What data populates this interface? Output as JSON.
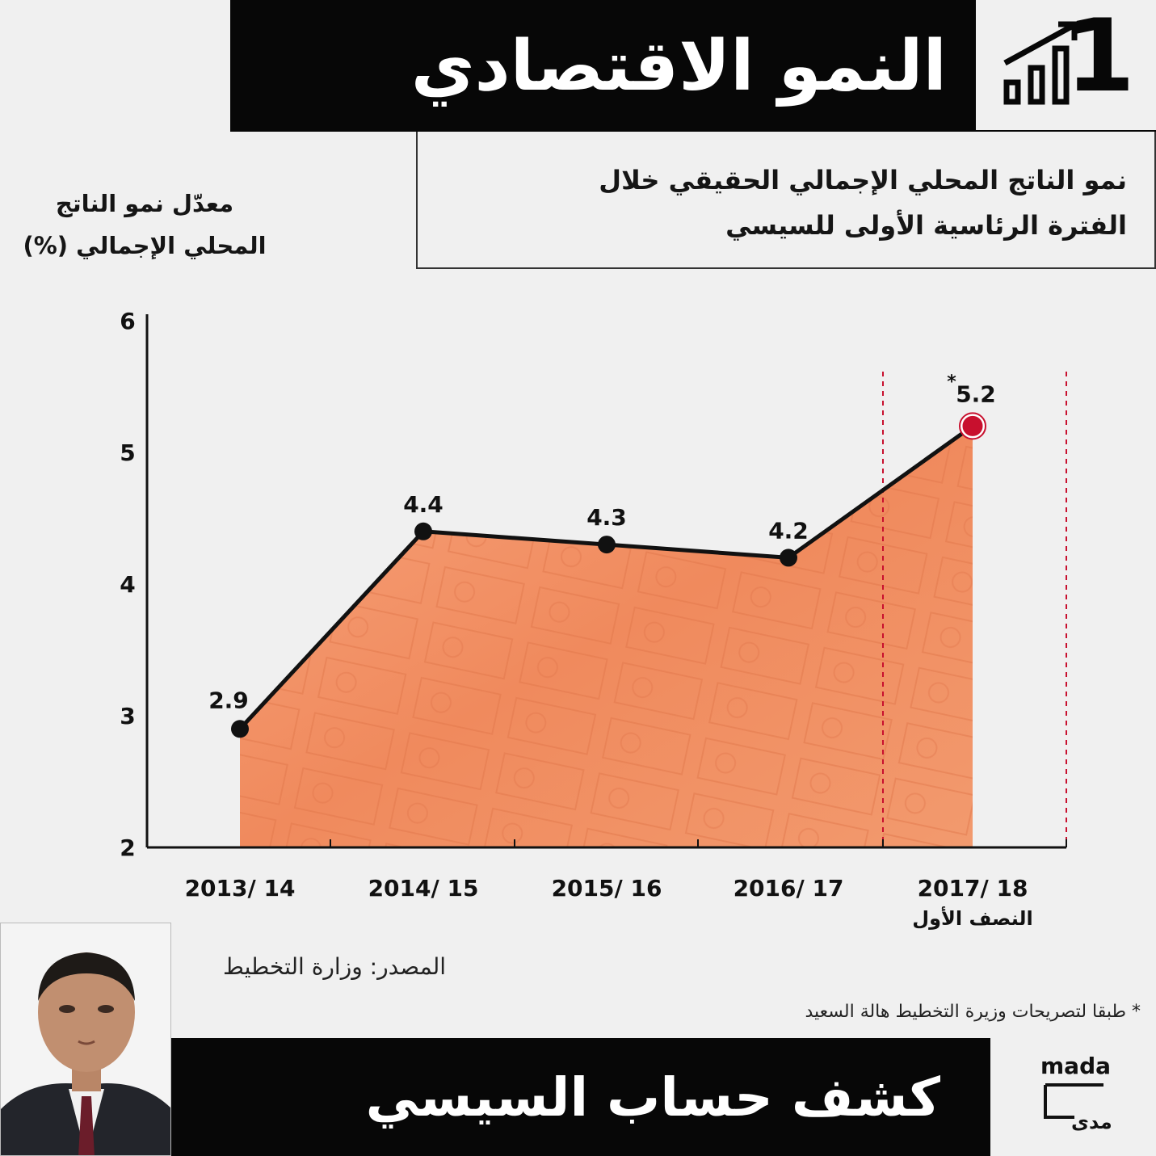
{
  "header": {
    "title": "النمو الاقتصادي",
    "number": "1"
  },
  "subtitle": "نمو الناتج المحلي الإجمالي الحقيقي خلال الفترة الرئاسية الأولى للسيسي",
  "colors": {
    "accent": "#c8102e",
    "fill": "#f08a5d",
    "bar": "#070707"
  },
  "chart_data": {
    "type": "line",
    "ylabel": "معدّل نمو الناتج المحلي الإجمالي (%)",
    "xlabel": "",
    "ylim": [
      2,
      6
    ],
    "yticks": [
      "2",
      "3",
      "4",
      "5",
      "6"
    ],
    "categories": [
      "2013/ 14",
      "2014/ 15",
      "2015/ 16",
      "2016/ 17",
      "2017/ 18"
    ],
    "category_sublabels": [
      "",
      "",
      "",
      "",
      "النصف الأول"
    ],
    "values": [
      2.9,
      4.4,
      4.3,
      4.2,
      5.2
    ],
    "value_labels": [
      "2.9",
      "4.4",
      "4.3",
      "4.2",
      "5.2"
    ],
    "highlight_marker": "*",
    "grid": false,
    "area_fill": true
  },
  "source": "المصدر: وزارة التخطيط",
  "footnote": "* طبقا لتصريحات وزيرة التخطيط هالة السعيد",
  "footer": {
    "title": "كشف حساب السيسي",
    "brand_latin": "mada",
    "brand_arabic": "مدى"
  }
}
